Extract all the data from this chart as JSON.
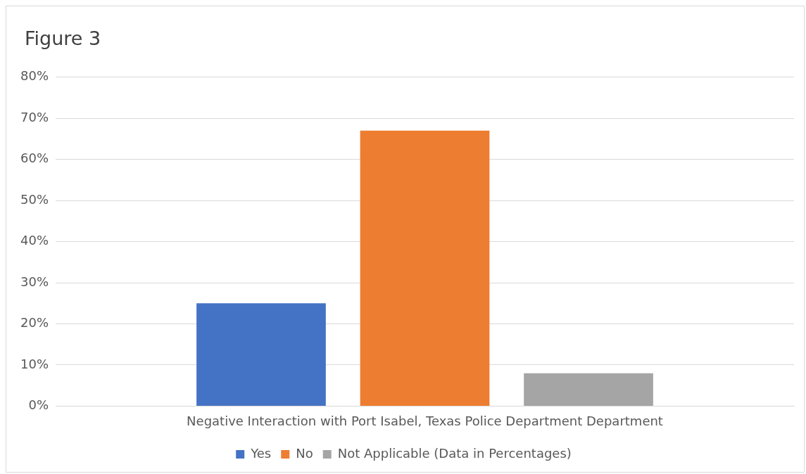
{
  "chart_data": {
    "type": "bar",
    "title": "Figure 3",
    "categories": [
      "Negative Interaction with Port Isabel, Texas Police Department Department"
    ],
    "series": [
      {
        "name": "Yes",
        "color": "#4472c4",
        "values": [
          25
        ]
      },
      {
        "name": "No",
        "color": "#ed7d31",
        "values": [
          67
        ]
      },
      {
        "name": "Not Applicable (Data in Percentages)",
        "color": "#a5a5a5",
        "values": [
          8
        ]
      }
    ],
    "ylim": [
      0,
      80
    ],
    "yticks": [
      {
        "value": 0,
        "label": "0%"
      },
      {
        "value": 10,
        "label": "10%"
      },
      {
        "value": 20,
        "label": "20%"
      },
      {
        "value": 30,
        "label": "30%"
      },
      {
        "value": 40,
        "label": "40%"
      },
      {
        "value": 50,
        "label": "50%"
      },
      {
        "value": 60,
        "label": "60%"
      },
      {
        "value": 70,
        "label": "70%"
      },
      {
        "value": 80,
        "label": "80%"
      }
    ],
    "grid": "y",
    "legend": "bottom"
  }
}
